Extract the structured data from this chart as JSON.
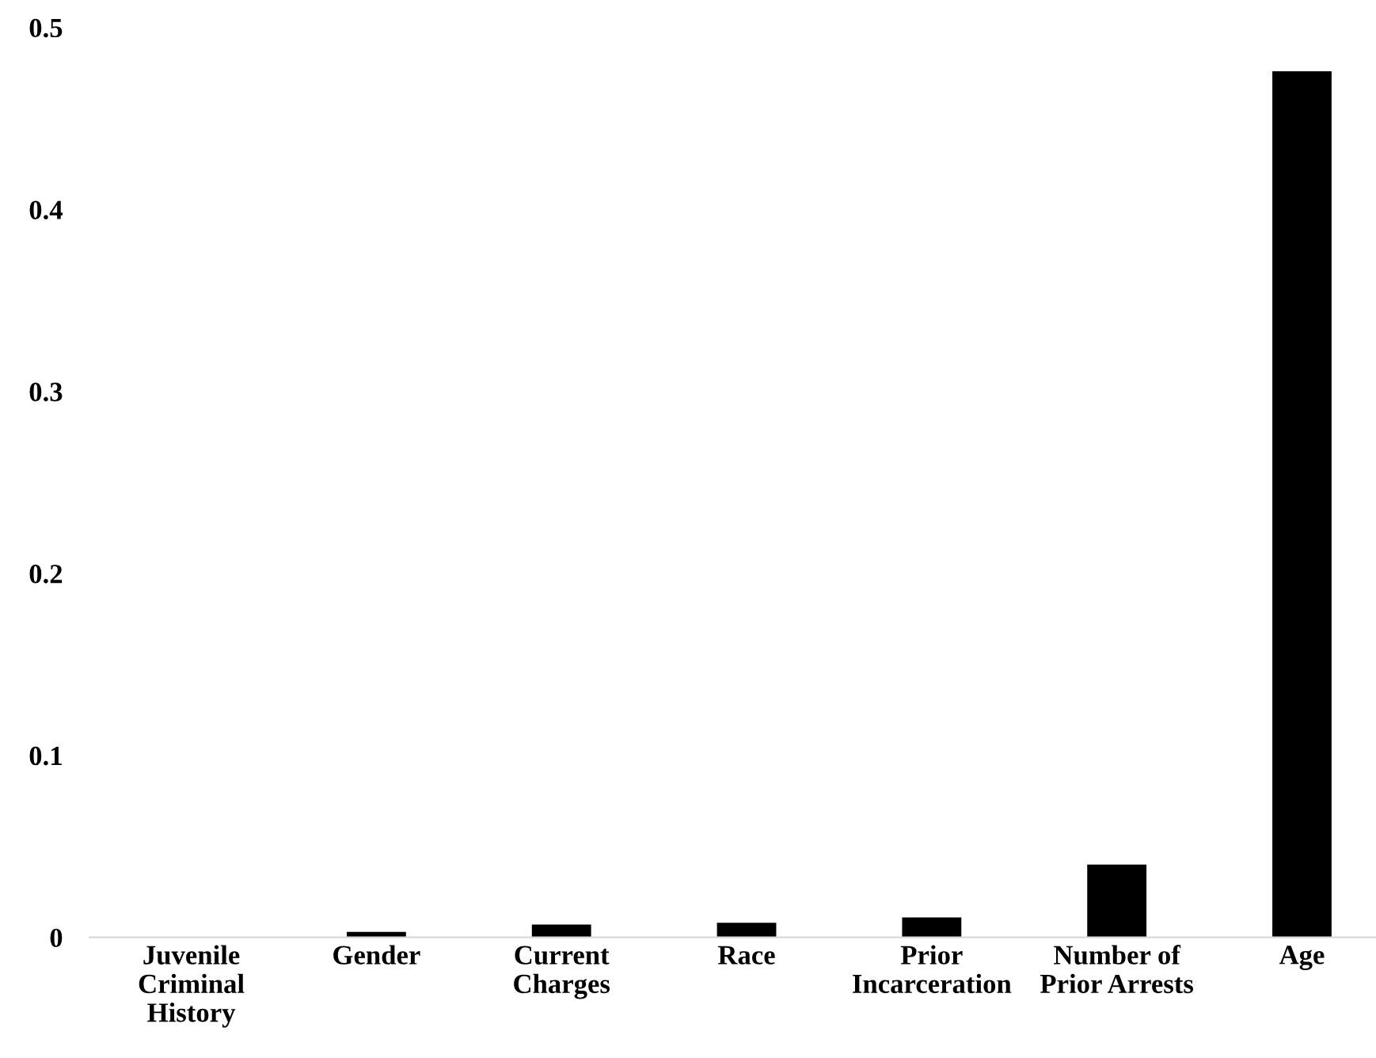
{
  "chart_data": {
    "type": "bar",
    "categories": [
      "Juvenile\nCriminal\nHistory",
      "Gender",
      "Current\nCharges",
      "Race",
      "Prior\nIncarceration",
      "Number of\nPrior Arrests",
      "Age"
    ],
    "values": [
      0,
      0.003,
      0.007,
      0.008,
      0.011,
      0.04,
      0.476
    ],
    "color": "#000000",
    "ylim": [
      0,
      0.5
    ],
    "yticks": [
      0,
      0.1,
      0.2,
      0.3,
      0.4,
      0.5
    ],
    "grid": false
  }
}
